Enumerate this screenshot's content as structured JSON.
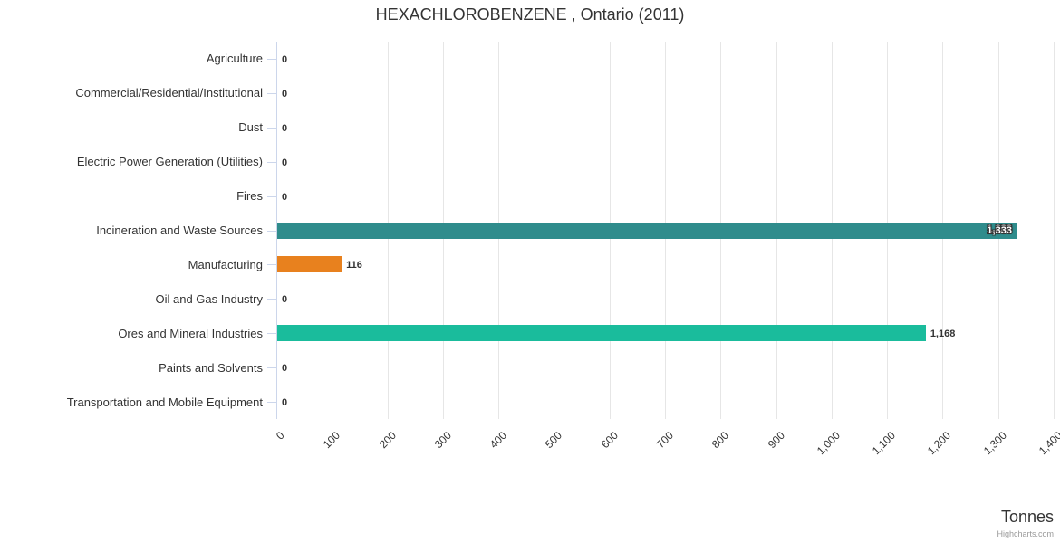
{
  "chart_data": {
    "type": "bar",
    "orientation": "horizontal",
    "title": "HEXACHLOROBENZENE , Ontario (2011)",
    "xlabel": "Tonnes",
    "ylabel": "",
    "legend": false,
    "grid": true,
    "x_axis": {
      "min": 0,
      "max": 1400,
      "tick_interval": 100,
      "tick_labels": [
        "0",
        "100",
        "200",
        "300",
        "400",
        "500",
        "600",
        "700",
        "800",
        "900",
        "1,000",
        "1,100",
        "1,200",
        "1,300",
        "1,400"
      ],
      "labels_rotation_deg": -45
    },
    "categories": [
      "Agriculture",
      "Commercial/Residential/Institutional",
      "Dust",
      "Electric Power Generation (Utilities)",
      "Fires",
      "Incineration and Waste Sources",
      "Manufacturing",
      "Oil and Gas Industry",
      "Ores and Mineral Industries",
      "Paints and Solvents",
      "Transportation and Mobile Equipment"
    ],
    "values": [
      0,
      0,
      0,
      0,
      0,
      1333,
      116,
      0,
      1168,
      0,
      0
    ],
    "points": [
      {
        "category": "Agriculture",
        "value": 0,
        "label": "0"
      },
      {
        "category": "Commercial/Residential/Institutional",
        "value": 0,
        "label": "0"
      },
      {
        "category": "Dust",
        "value": 0,
        "label": "0"
      },
      {
        "category": "Electric Power Generation (Utilities)",
        "value": 0,
        "label": "0"
      },
      {
        "category": "Fires",
        "value": 0,
        "label": "0"
      },
      {
        "category": "Incineration and Waste Sources",
        "value": 1333,
        "label": "1,333",
        "color": "#2f8c8c",
        "label_inside": true,
        "label_doubled": true
      },
      {
        "category": "Manufacturing",
        "value": 116,
        "label": "116",
        "color": "#e8811e"
      },
      {
        "category": "Oil and Gas Industry",
        "value": 0,
        "label": "0"
      },
      {
        "category": "Ores and Mineral Industries",
        "value": 1168,
        "label": "1,168",
        "color": "#1abc9c"
      },
      {
        "category": "Paints and Solvents",
        "value": 0,
        "label": "0"
      },
      {
        "category": "Transportation and Mobile Equipment",
        "value": 0,
        "label": "0"
      }
    ]
  },
  "credit": "Highcharts.com",
  "colors": {
    "axis_line": "#ccd6eb",
    "grid_line": "#e6e6e6",
    "text": "#333333",
    "credit": "#999999",
    "background": "#ffffff"
  }
}
